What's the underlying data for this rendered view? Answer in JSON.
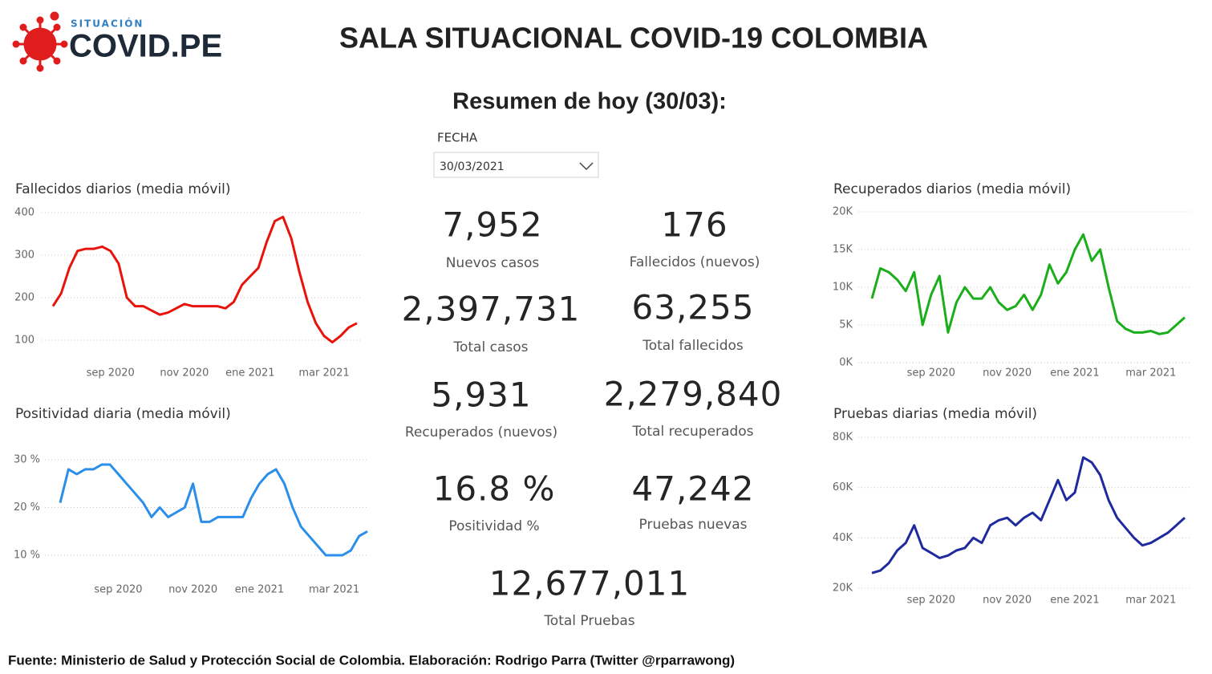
{
  "header": {
    "logo_small": "SITUACIÓN",
    "logo_big": "COVID.PE",
    "title": "SALA SITUACIONAL COVID-19 COLOMBIA"
  },
  "subtitle": "Resumen de hoy (30/03):",
  "filter": {
    "label": "FECHA",
    "value": "30/03/2021"
  },
  "kpis": [
    {
      "value": "7,952",
      "label": "Nuevos casos"
    },
    {
      "value": "176",
      "label": "Fallecidos (nuevos)"
    },
    {
      "value": "2,397,731",
      "label": "Total casos"
    },
    {
      "value": "63,255",
      "label": "Total fallecidos"
    },
    {
      "value": "5,931",
      "label": "Recuperados (nuevos)"
    },
    {
      "value": "2,279,840",
      "label": "Total recuperados"
    },
    {
      "value": "16.8 %",
      "label": "Positividad %"
    },
    {
      "value": "47,242",
      "label": "Pruebas nuevas"
    },
    {
      "value": "12,677,011",
      "label": "Total Pruebas"
    }
  ],
  "footer": "Fuente: Ministerio de Salud y Protección Social de Colombia. Elaboración: Rodrigo Parra (Twitter @rparrawong)",
  "chart_data": [
    {
      "type": "line",
      "title": "Fallecidos diarios (media móvil)",
      "color": "#e8140c",
      "grid": true,
      "categories": [
        null,
        null,
        null,
        null,
        null,
        null,
        null,
        "sep 2020",
        null,
        null,
        null,
        null,
        null,
        null,
        null,
        null,
        "nov 2020",
        null,
        null,
        null,
        null,
        null,
        null,
        null,
        "ene 2021",
        null,
        null,
        null,
        null,
        null,
        null,
        null,
        null,
        "mar 2021",
        null,
        null,
        null,
        null
      ],
      "values": [
        180,
        210,
        270,
        310,
        315,
        315,
        320,
        310,
        280,
        200,
        180,
        180,
        170,
        160,
        165,
        175,
        185,
        180,
        180,
        180,
        180,
        175,
        190,
        230,
        250,
        270,
        330,
        380,
        390,
        340,
        260,
        190,
        140,
        110,
        95,
        110,
        130,
        140
      ],
      "ylim": [
        50,
        400
      ],
      "yticks": [
        100,
        200,
        300,
        400
      ]
    },
    {
      "type": "line",
      "title": "Positividad diaria (media móvil)",
      "color": "#2b8ee8",
      "grid": true,
      "categories": [
        null,
        null,
        null,
        null,
        null,
        null,
        null,
        "sep 2020",
        null,
        null,
        null,
        null,
        null,
        null,
        null,
        null,
        "nov 2020",
        null,
        null,
        null,
        null,
        null,
        null,
        null,
        "ene 2021",
        null,
        null,
        null,
        null,
        null,
        null,
        null,
        null,
        "mar 2021",
        null,
        null,
        null,
        null
      ],
      "values": [
        21,
        28,
        27,
        28,
        28,
        29,
        29,
        27,
        25,
        23,
        21,
        18,
        20,
        18,
        19,
        20,
        25,
        17,
        17,
        18,
        18,
        18,
        18,
        22,
        25,
        27,
        28,
        25,
        20,
        16,
        14,
        12,
        10,
        10,
        10,
        11,
        14,
        15
      ],
      "ylim": [
        5,
        30
      ],
      "yticks": [
        {
          "value": 10,
          "label": "10 %"
        },
        {
          "value": 20,
          "label": "20 %"
        },
        {
          "value": 30,
          "label": "30 %"
        }
      ]
    },
    {
      "type": "line",
      "title": "Recuperados diarios (media móvil)",
      "color": "#1aae1a",
      "grid": true,
      "categories": [
        null,
        null,
        null,
        null,
        null,
        null,
        null,
        "sep 2020",
        null,
        null,
        null,
        null,
        null,
        null,
        null,
        null,
        "nov 2020",
        null,
        null,
        null,
        null,
        null,
        null,
        null,
        "ene 2021",
        null,
        null,
        null,
        null,
        null,
        null,
        null,
        null,
        "mar 2021",
        null,
        null,
        null,
        null
      ],
      "values": [
        8500,
        12500,
        12000,
        11000,
        9500,
        12000,
        5000,
        9000,
        11500,
        4000,
        8000,
        10000,
        8500,
        8500,
        10000,
        8000,
        7000,
        7500,
        9000,
        7000,
        9000,
        13000,
        10500,
        12000,
        15000,
        17000,
        13500,
        15000,
        10000,
        5500,
        4500,
        4000,
        4000,
        4200,
        3800,
        4000,
        5000,
        6000
      ],
      "ylim": [
        0,
        20000
      ],
      "yticks": [
        {
          "value": 0,
          "label": "0K"
        },
        {
          "value": 5000,
          "label": "5K"
        },
        {
          "value": 10000,
          "label": "10K"
        },
        {
          "value": 15000,
          "label": "15K"
        },
        {
          "value": 20000,
          "label": "20K"
        }
      ]
    },
    {
      "type": "line",
      "title": "Pruebas diarias (media móvil)",
      "color": "#1f2a9e",
      "grid": true,
      "categories": [
        null,
        null,
        null,
        null,
        null,
        null,
        null,
        "sep 2020",
        null,
        null,
        null,
        null,
        null,
        null,
        null,
        null,
        "nov 2020",
        null,
        null,
        null,
        null,
        null,
        null,
        null,
        "ene 2021",
        null,
        null,
        null,
        null,
        null,
        null,
        null,
        null,
        "mar 2021",
        null,
        null,
        null,
        null
      ],
      "values": [
        26000,
        27000,
        30000,
        35000,
        38000,
        45000,
        36000,
        34000,
        32000,
        33000,
        35000,
        36000,
        40000,
        38000,
        45000,
        47000,
        48000,
        45000,
        48000,
        50000,
        47000,
        55000,
        63000,
        55000,
        58000,
        72000,
        70000,
        65000,
        55000,
        48000,
        44000,
        40000,
        37000,
        38000,
        40000,
        42000,
        45000,
        48000
      ],
      "ylim": [
        20000,
        80000
      ],
      "yticks": [
        {
          "value": 20000,
          "label": "20K"
        },
        {
          "value": 40000,
          "label": "40K"
        },
        {
          "value": 60000,
          "label": "60K"
        },
        {
          "value": 80000,
          "label": "80K"
        }
      ]
    }
  ]
}
